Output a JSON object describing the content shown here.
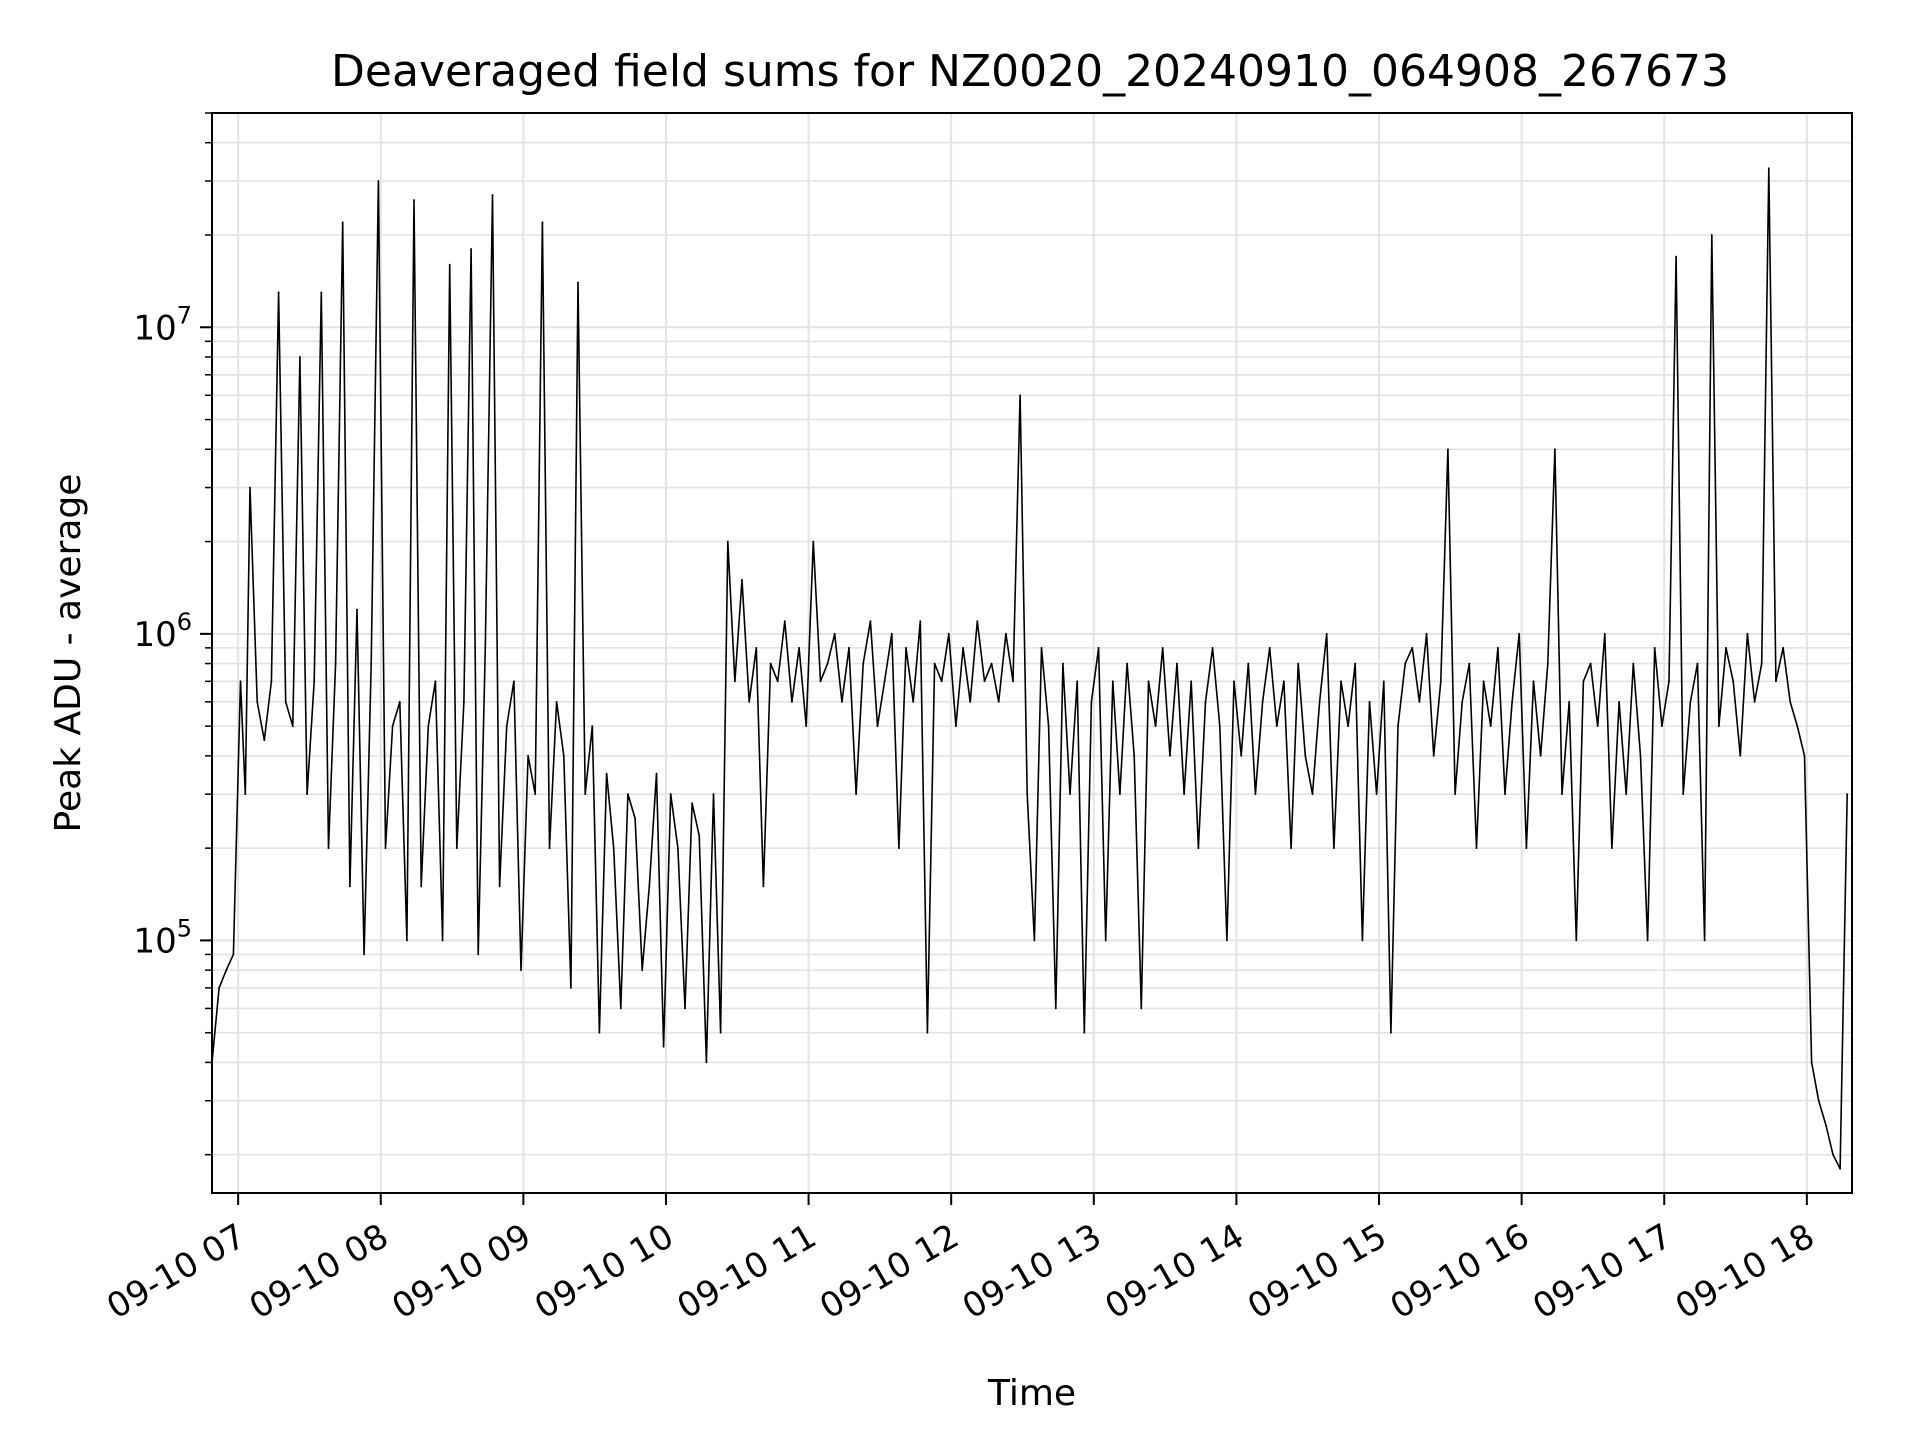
{
  "chart_data": {
    "type": "line",
    "title": "Deaveraged field sums for NZ0020_20240910_064908_267673",
    "xlabel": "Time",
    "ylabel": "Peak ADU - average",
    "yscale": "log",
    "ylim": [
      15000,
      50000000
    ],
    "xlim": [
      "2024-09-10 06:49",
      "2024-09-10 18:19"
    ],
    "grid": true,
    "x_ticks": [
      {
        "t": "2024-09-10 07:00",
        "label": "09-10 07"
      },
      {
        "t": "2024-09-10 08:00",
        "label": "09-10 08"
      },
      {
        "t": "2024-09-10 09:00",
        "label": "09-10 09"
      },
      {
        "t": "2024-09-10 10:00",
        "label": "09-10 10"
      },
      {
        "t": "2024-09-10 11:00",
        "label": "09-10 11"
      },
      {
        "t": "2024-09-10 12:00",
        "label": "09-10 12"
      },
      {
        "t": "2024-09-10 13:00",
        "label": "09-10 13"
      },
      {
        "t": "2024-09-10 14:00",
        "label": "09-10 14"
      },
      {
        "t": "2024-09-10 15:00",
        "label": "09-10 15"
      },
      {
        "t": "2024-09-10 16:00",
        "label": "09-10 16"
      },
      {
        "t": "2024-09-10 17:00",
        "label": "09-10 17"
      },
      {
        "t": "2024-09-10 18:00",
        "label": "09-10 18"
      }
    ],
    "y_ticks": [
      {
        "value": 100000,
        "base": "10",
        "exp": "5"
      },
      {
        "value": 1000000,
        "base": "10",
        "exp": "6"
      },
      {
        "value": 10000000,
        "base": "10",
        "exp": "7"
      }
    ],
    "series": [
      {
        "color": "#000000",
        "x": [
          "2024-09-10 06:49",
          "2024-09-10 06:52",
          "2024-09-10 06:55",
          "2024-09-10 06:58",
          "2024-09-10 07:01",
          "2024-09-10 07:03",
          "2024-09-10 07:05",
          "2024-09-10 07:08",
          "2024-09-10 07:11",
          "2024-09-10 07:14",
          "2024-09-10 07:17",
          "2024-09-10 07:20",
          "2024-09-10 07:23",
          "2024-09-10 07:26",
          "2024-09-10 07:29",
          "2024-09-10 07:32",
          "2024-09-10 07:35",
          "2024-09-10 07:38",
          "2024-09-10 07:41",
          "2024-09-10 07:44",
          "2024-09-10 07:47",
          "2024-09-10 07:50",
          "2024-09-10 07:53",
          "2024-09-10 07:56",
          "2024-09-10 07:59",
          "2024-09-10 08:02",
          "2024-09-10 08:05",
          "2024-09-10 08:08",
          "2024-09-10 08:11",
          "2024-09-10 08:14",
          "2024-09-10 08:17",
          "2024-09-10 08:20",
          "2024-09-10 08:23",
          "2024-09-10 08:26",
          "2024-09-10 08:29",
          "2024-09-10 08:32",
          "2024-09-10 08:35",
          "2024-09-10 08:38",
          "2024-09-10 08:41",
          "2024-09-10 08:44",
          "2024-09-10 08:47",
          "2024-09-10 08:50",
          "2024-09-10 08:53",
          "2024-09-10 08:56",
          "2024-09-10 08:59",
          "2024-09-10 09:02",
          "2024-09-10 09:05",
          "2024-09-10 09:08",
          "2024-09-10 09:11",
          "2024-09-10 09:14",
          "2024-09-10 09:17",
          "2024-09-10 09:20",
          "2024-09-10 09:23",
          "2024-09-10 09:26",
          "2024-09-10 09:29",
          "2024-09-10 09:32",
          "2024-09-10 09:35",
          "2024-09-10 09:38",
          "2024-09-10 09:41",
          "2024-09-10 09:44",
          "2024-09-10 09:47",
          "2024-09-10 09:50",
          "2024-09-10 09:53",
          "2024-09-10 09:56",
          "2024-09-10 09:59",
          "2024-09-10 10:02",
          "2024-09-10 10:05",
          "2024-09-10 10:08",
          "2024-09-10 10:11",
          "2024-09-10 10:14",
          "2024-09-10 10:17",
          "2024-09-10 10:20",
          "2024-09-10 10:23",
          "2024-09-10 10:26",
          "2024-09-10 10:29",
          "2024-09-10 10:32",
          "2024-09-10 10:35",
          "2024-09-10 10:38",
          "2024-09-10 10:41",
          "2024-09-10 10:44",
          "2024-09-10 10:47",
          "2024-09-10 10:50",
          "2024-09-10 10:53",
          "2024-09-10 10:56",
          "2024-09-10 10:59",
          "2024-09-10 11:02",
          "2024-09-10 11:05",
          "2024-09-10 11:08",
          "2024-09-10 11:11",
          "2024-09-10 11:14",
          "2024-09-10 11:17",
          "2024-09-10 11:20",
          "2024-09-10 11:23",
          "2024-09-10 11:26",
          "2024-09-10 11:29",
          "2024-09-10 11:32",
          "2024-09-10 11:35",
          "2024-09-10 11:38",
          "2024-09-10 11:41",
          "2024-09-10 11:44",
          "2024-09-10 11:47",
          "2024-09-10 11:50",
          "2024-09-10 11:53",
          "2024-09-10 11:56",
          "2024-09-10 11:59",
          "2024-09-10 12:02",
          "2024-09-10 12:05",
          "2024-09-10 12:08",
          "2024-09-10 12:11",
          "2024-09-10 12:14",
          "2024-09-10 12:17",
          "2024-09-10 12:20",
          "2024-09-10 12:23",
          "2024-09-10 12:26",
          "2024-09-10 12:29",
          "2024-09-10 12:32",
          "2024-09-10 12:35",
          "2024-09-10 12:38",
          "2024-09-10 12:41",
          "2024-09-10 12:44",
          "2024-09-10 12:47",
          "2024-09-10 12:50",
          "2024-09-10 12:53",
          "2024-09-10 12:56",
          "2024-09-10 12:59",
          "2024-09-10 13:02",
          "2024-09-10 13:05",
          "2024-09-10 13:08",
          "2024-09-10 13:11",
          "2024-09-10 13:14",
          "2024-09-10 13:17",
          "2024-09-10 13:20",
          "2024-09-10 13:23",
          "2024-09-10 13:26",
          "2024-09-10 13:29",
          "2024-09-10 13:32",
          "2024-09-10 13:35",
          "2024-09-10 13:38",
          "2024-09-10 13:41",
          "2024-09-10 13:44",
          "2024-09-10 13:47",
          "2024-09-10 13:50",
          "2024-09-10 13:53",
          "2024-09-10 13:56",
          "2024-09-10 13:59",
          "2024-09-10 14:02",
          "2024-09-10 14:05",
          "2024-09-10 14:08",
          "2024-09-10 14:11",
          "2024-09-10 14:14",
          "2024-09-10 14:17",
          "2024-09-10 14:20",
          "2024-09-10 14:23",
          "2024-09-10 14:26",
          "2024-09-10 14:29",
          "2024-09-10 14:32",
          "2024-09-10 14:35",
          "2024-09-10 14:38",
          "2024-09-10 14:41",
          "2024-09-10 14:44",
          "2024-09-10 14:47",
          "2024-09-10 14:50",
          "2024-09-10 14:53",
          "2024-09-10 14:56",
          "2024-09-10 14:59",
          "2024-09-10 15:02",
          "2024-09-10 15:05",
          "2024-09-10 15:08",
          "2024-09-10 15:11",
          "2024-09-10 15:14",
          "2024-09-10 15:17",
          "2024-09-10 15:20",
          "2024-09-10 15:23",
          "2024-09-10 15:26",
          "2024-09-10 15:29",
          "2024-09-10 15:32",
          "2024-09-10 15:35",
          "2024-09-10 15:38",
          "2024-09-10 15:41",
          "2024-09-10 15:44",
          "2024-09-10 15:47",
          "2024-09-10 15:50",
          "2024-09-10 15:53",
          "2024-09-10 15:56",
          "2024-09-10 15:59",
          "2024-09-10 16:02",
          "2024-09-10 16:05",
          "2024-09-10 16:08",
          "2024-09-10 16:11",
          "2024-09-10 16:14",
          "2024-09-10 16:17",
          "2024-09-10 16:20",
          "2024-09-10 16:23",
          "2024-09-10 16:26",
          "2024-09-10 16:29",
          "2024-09-10 16:32",
          "2024-09-10 16:35",
          "2024-09-10 16:38",
          "2024-09-10 16:41",
          "2024-09-10 16:44",
          "2024-09-10 16:47",
          "2024-09-10 16:50",
          "2024-09-10 16:53",
          "2024-09-10 16:56",
          "2024-09-10 16:59",
          "2024-09-10 17:02",
          "2024-09-10 17:05",
          "2024-09-10 17:08",
          "2024-09-10 17:11",
          "2024-09-10 17:14",
          "2024-09-10 17:17",
          "2024-09-10 17:20",
          "2024-09-10 17:23",
          "2024-09-10 17:26",
          "2024-09-10 17:29",
          "2024-09-10 17:32",
          "2024-09-10 17:35",
          "2024-09-10 17:38",
          "2024-09-10 17:41",
          "2024-09-10 17:44",
          "2024-09-10 17:47",
          "2024-09-10 17:50",
          "2024-09-10 17:53",
          "2024-09-10 17:56",
          "2024-09-10 17:59",
          "2024-09-10 18:02",
          "2024-09-10 18:05",
          "2024-09-10 18:08",
          "2024-09-10 18:11",
          "2024-09-10 18:14",
          "2024-09-10 18:17"
        ],
        "y": [
          40000,
          70000,
          80000,
          90000,
          700000,
          300000,
          3000000,
          600000,
          450000,
          700000,
          13000000,
          600000,
          500000,
          8000000,
          300000,
          700000,
          13000000,
          200000,
          800000,
          22000000,
          150000,
          1200000,
          90000,
          800000,
          30000000,
          200000,
          500000,
          600000,
          100000,
          26000000,
          150000,
          500000,
          700000,
          100000,
          16000000,
          200000,
          600000,
          18000000,
          90000,
          900000,
          27000000,
          150000,
          500000,
          700000,
          80000,
          400000,
          300000,
          22000000,
          200000,
          600000,
          400000,
          70000,
          14000000,
          300000,
          500000,
          50000,
          350000,
          200000,
          60000,
          300000,
          250000,
          80000,
          150000,
          350000,
          45000,
          300000,
          200000,
          60000,
          280000,
          220000,
          40000,
          300000,
          50000,
          2000000,
          700000,
          1500000,
          600000,
          900000,
          150000,
          800000,
          700000,
          1100000,
          600000,
          900000,
          500000,
          2000000,
          700000,
          800000,
          1000000,
          600000,
          900000,
          300000,
          800000,
          1100000,
          500000,
          700000,
          1000000,
          200000,
          900000,
          600000,
          1100000,
          50000,
          800000,
          700000,
          1000000,
          500000,
          900000,
          600000,
          1100000,
          700000,
          800000,
          600000,
          1000000,
          700000,
          6000000,
          300000,
          100000,
          900000,
          500000,
          60000,
          800000,
          300000,
          700000,
          50000,
          600000,
          900000,
          100000,
          700000,
          300000,
          800000,
          400000,
          60000,
          700000,
          500000,
          900000,
          400000,
          800000,
          300000,
          700000,
          200000,
          600000,
          900000,
          500000,
          100000,
          700000,
          400000,
          800000,
          300000,
          600000,
          900000,
          500000,
          700000,
          200000,
          800000,
          400000,
          300000,
          600000,
          1000000,
          200000,
          700000,
          500000,
          800000,
          100000,
          600000,
          300000,
          700000,
          50000,
          500000,
          800000,
          900000,
          600000,
          1000000,
          400000,
          700000,
          4000000,
          300000,
          600000,
          800000,
          200000,
          700000,
          500000,
          900000,
          300000,
          600000,
          1000000,
          200000,
          700000,
          400000,
          800000,
          4000000,
          300000,
          600000,
          100000,
          700000,
          800000,
          500000,
          1000000,
          200000,
          600000,
          300000,
          800000,
          400000,
          100000,
          900000,
          500000,
          700000,
          17000000,
          300000,
          600000,
          800000,
          100000,
          20000000,
          500000,
          900000,
          700000,
          400000,
          1000000,
          600000,
          800000,
          33000000,
          700000,
          900000,
          600000,
          500000,
          400000,
          40000,
          30000,
          25000,
          20000,
          18000,
          300000
        ]
      }
    ]
  }
}
